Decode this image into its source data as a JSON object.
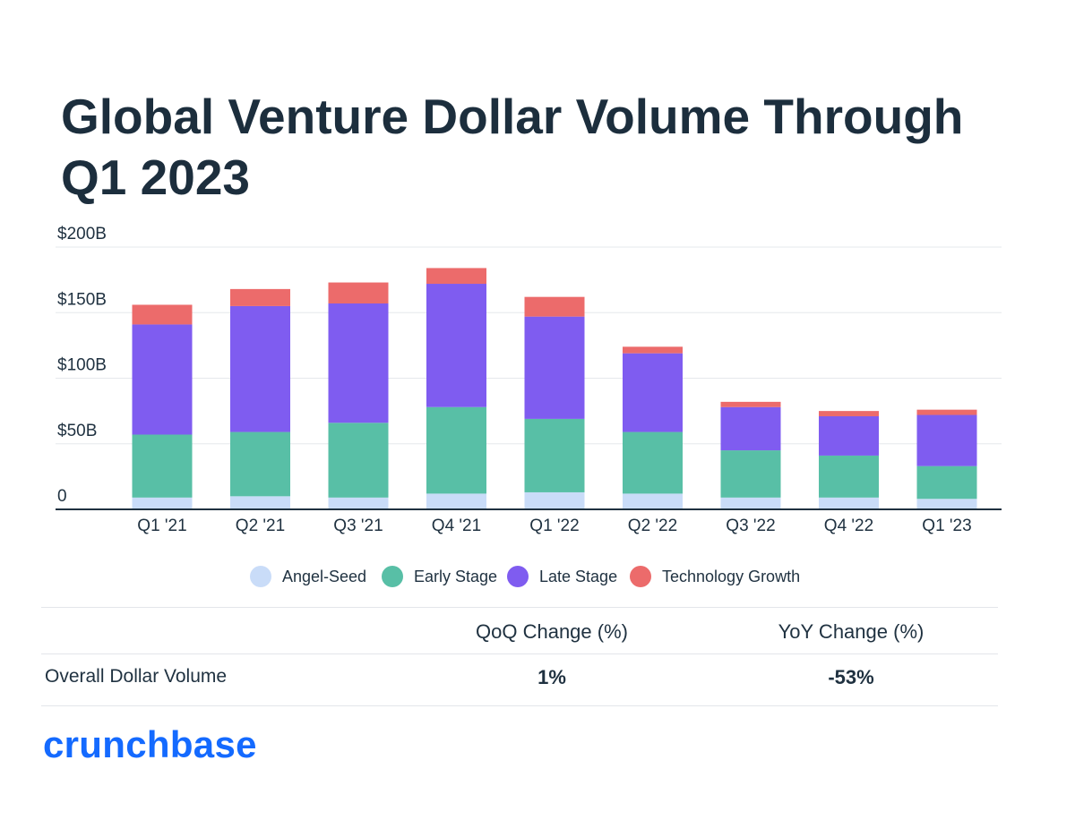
{
  "title": "Global Venture Dollar Volume Through Q1 2023",
  "chart_data": {
    "type": "bar",
    "stacked": true,
    "categories": [
      "Q1 '21",
      "Q2 '21",
      "Q3 '21",
      "Q4 '21",
      "Q1 '22",
      "Q2 '22",
      "Q3 '22",
      "Q4 '22",
      "Q1 '23"
    ],
    "series": [
      {
        "name": "Angel-Seed",
        "color": "#c9dcf8",
        "values": [
          9,
          10,
          9,
          12,
          13,
          12,
          9,
          9,
          8
        ]
      },
      {
        "name": "Early Stage",
        "color": "#58bfa6",
        "values": [
          48,
          49,
          57,
          66,
          56,
          47,
          36,
          32,
          25
        ]
      },
      {
        "name": "Late Stage",
        "color": "#7f5cf0",
        "values": [
          84,
          96,
          91,
          94,
          78,
          60,
          33,
          30,
          39
        ]
      },
      {
        "name": "Technology Growth",
        "color": "#ec6b6b",
        "values": [
          15,
          13,
          16,
          12,
          15,
          5,
          4,
          4,
          4
        ]
      }
    ],
    "yticks": [
      {
        "value": 0,
        "label": "0"
      },
      {
        "value": 50,
        "label": "$50B"
      },
      {
        "value": 100,
        "label": "$100B"
      },
      {
        "value": 150,
        "label": "$150B"
      },
      {
        "value": 200,
        "label": "$200B"
      }
    ],
    "ylim": [
      0,
      200
    ],
    "grid": true,
    "legend_position": "bottom"
  },
  "table": {
    "headers": [
      "QoQ Change (%)",
      "YoY Change (%)"
    ],
    "row_label": "Overall Dollar Volume",
    "values": [
      "1%",
      "-53%"
    ]
  },
  "brand": "crunchbase"
}
